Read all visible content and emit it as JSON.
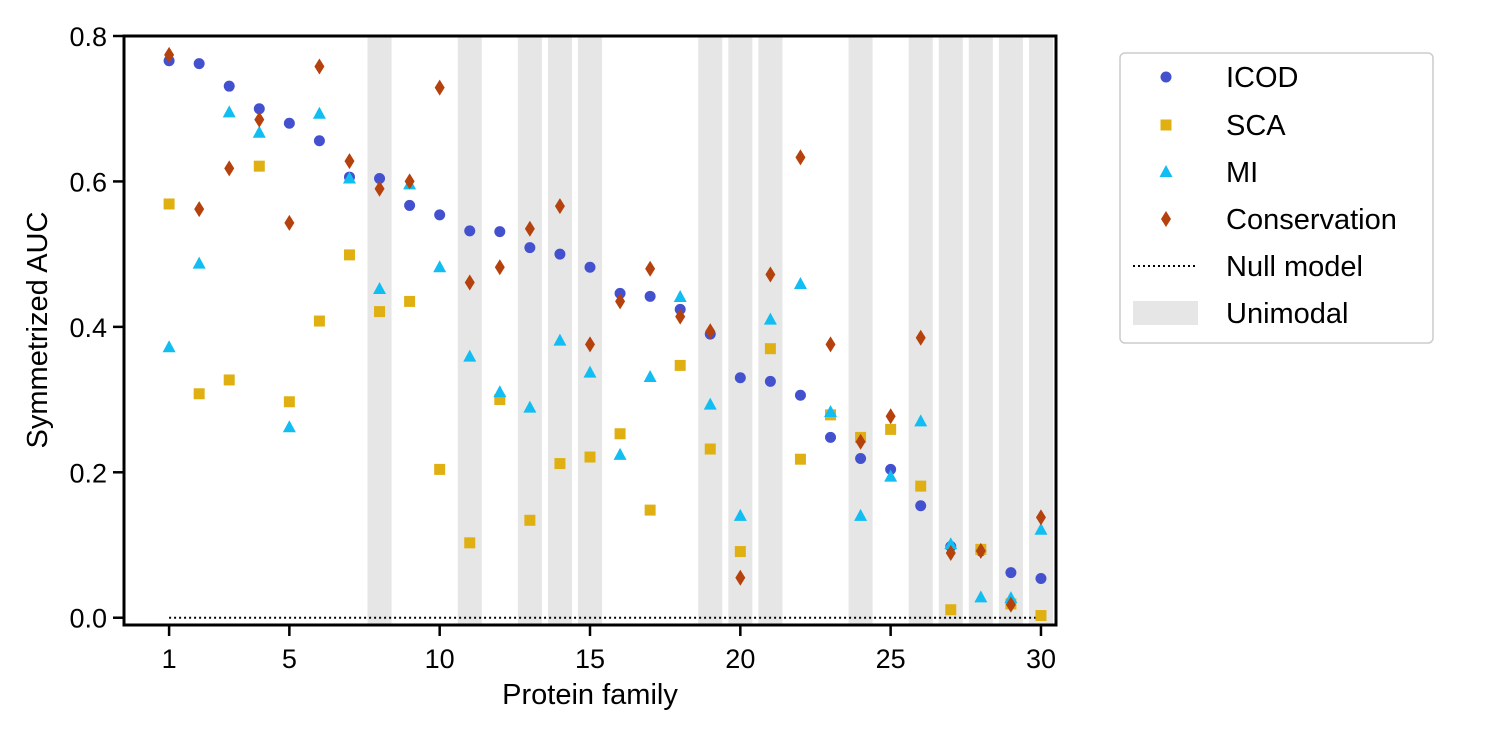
{
  "chart_data": {
    "type": "scatter",
    "title": "",
    "xlabel": "Protein family",
    "ylabel": "Symmetrized AUC",
    "xlim": [
      -0.5,
      30.5
    ],
    "ylim": [
      -0.01,
      0.8
    ],
    "xticks": [
      1,
      5,
      10,
      15,
      20,
      25,
      30
    ],
    "xtick_labels": [
      "1",
      "5",
      "10",
      "15",
      "20",
      "25",
      "30"
    ],
    "yticks": [
      0.0,
      0.2,
      0.4,
      0.6,
      0.8
    ],
    "ytick_labels": [
      "0.0",
      "0.2",
      "0.4",
      "0.6",
      "0.8"
    ],
    "grid": false,
    "legend_position": "outside-right",
    "unimodal_families": [
      8,
      11,
      13,
      14,
      15,
      19,
      20,
      21,
      24,
      26,
      27,
      28,
      29,
      30
    ],
    "null_model": 0.0,
    "colors": {
      "ICOD": "#4451cf",
      "SCA": "#e0b013",
      "MI": "#12bdf2",
      "Conservation": "#b5410d",
      "null": "#000000",
      "unimodal": "#e6e6e6"
    },
    "series": [
      {
        "name": "ICOD",
        "marker": "circle",
        "values": [
          0.766,
          0.762,
          0.731,
          0.7,
          0.68,
          0.656,
          0.606,
          0.604,
          0.567,
          0.554,
          0.532,
          0.531,
          0.509,
          0.5,
          0.482,
          0.446,
          0.442,
          0.424,
          0.39,
          0.33,
          0.325,
          0.306,
          0.248,
          0.219,
          0.204,
          0.154,
          0.098,
          0.092,
          0.062,
          0.054
        ]
      },
      {
        "name": "SCA",
        "marker": "square",
        "values": [
          0.569,
          0.308,
          0.327,
          0.621,
          0.297,
          0.408,
          0.499,
          0.421,
          0.435,
          0.204,
          0.103,
          0.3,
          0.134,
          0.212,
          0.221,
          0.253,
          0.148,
          0.347,
          0.232,
          0.091,
          0.37,
          0.218,
          0.279,
          0.248,
          0.259,
          0.181,
          0.011,
          0.094,
          0.019,
          0.003
        ]
      },
      {
        "name": "MI",
        "marker": "triangle",
        "values": [
          0.372,
          0.487,
          0.695,
          0.667,
          0.262,
          0.693,
          0.604,
          0.452,
          0.596,
          0.482,
          0.359,
          0.31,
          0.289,
          0.381,
          0.337,
          0.224,
          0.331,
          0.441,
          0.293,
          0.14,
          0.41,
          0.459,
          0.283,
          0.14,
          0.194,
          0.27,
          0.101,
          0.028,
          0.027,
          0.121
        ]
      },
      {
        "name": "Conservation",
        "marker": "diamond",
        "values": [
          0.774,
          0.562,
          0.618,
          0.685,
          0.543,
          0.758,
          0.628,
          0.59,
          0.6,
          0.729,
          0.461,
          0.482,
          0.535,
          0.566,
          0.376,
          0.435,
          0.48,
          0.414,
          0.394,
          0.055,
          0.472,
          0.633,
          0.376,
          0.242,
          0.277,
          0.385,
          0.089,
          0.092,
          0.018,
          0.138
        ]
      }
    ],
    "legend": [
      {
        "key": "ICOD",
        "label": "ICOD",
        "kind": "circle"
      },
      {
        "key": "SCA",
        "label": "SCA",
        "kind": "square"
      },
      {
        "key": "MI",
        "label": "MI",
        "kind": "triangle"
      },
      {
        "key": "Conservation",
        "label": "Conservation",
        "kind": "diamond"
      },
      {
        "key": "null",
        "label": "Null model",
        "kind": "dotted-line"
      },
      {
        "key": "unimodal",
        "label": "Unimodal",
        "kind": "band"
      }
    ]
  }
}
